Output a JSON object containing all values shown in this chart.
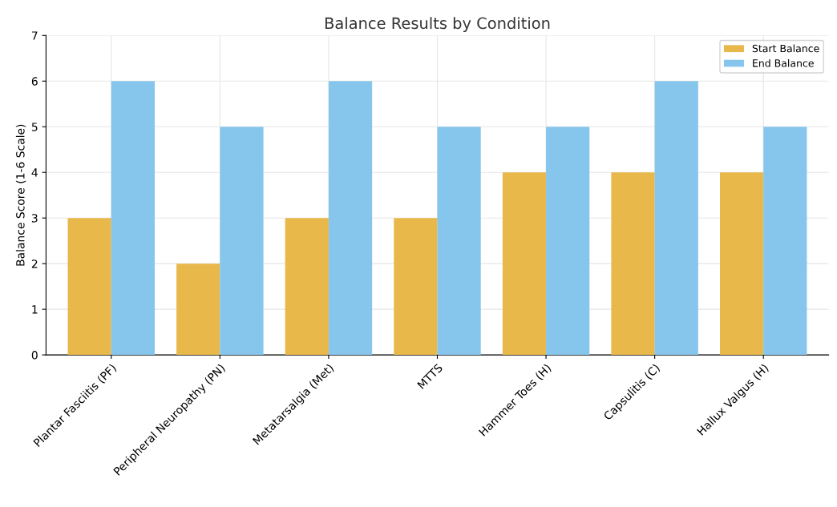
{
  "chart_data": {
    "type": "bar",
    "title": "Balance Results by Condition",
    "ylabel": "Balance Score (1-6 Scale)",
    "categories": [
      "Plantar Fasciitis (PF)",
      "Peripheral Neuropathy (PN)",
      "Metatarsalgia (Met)",
      "MTTS",
      "Hammer Toes (H)",
      "Capsulitis (C)",
      "Hallux Valgus (H)"
    ],
    "series": [
      {
        "name": "Start Balance",
        "color": "#e8b84a",
        "values": [
          3,
          2,
          3,
          3,
          4,
          4,
          4
        ]
      },
      {
        "name": "End Balance",
        "color": "#87c6ec",
        "values": [
          6,
          5,
          6,
          5,
          5,
          6,
          5
        ]
      }
    ],
    "ylim": [
      0,
      7
    ],
    "yticks": [
      0,
      1,
      2,
      3,
      4,
      5,
      6,
      7
    ],
    "grid": true,
    "legend": "top right"
  }
}
